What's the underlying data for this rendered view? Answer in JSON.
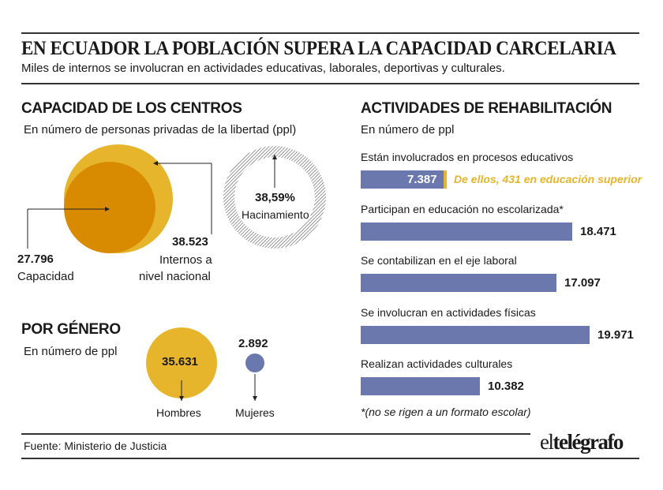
{
  "header": {
    "title": "EN ECUADOR LA POBLACIÓN SUPERA LA CAPACIDAD CARCELARIA",
    "subtitle": "Miles de internos se involucran en actividades educativas, laborales, deportivas y culturales."
  },
  "capacity": {
    "heading": "CAPACIDAD DE LOS CENTROS",
    "unit": "En número de personas privadas de la libertad (ppl)",
    "capacidad_value": "27.796",
    "capacidad_label": "Capacidad",
    "internos_value": "38.523",
    "internos_label_1": "Internos a",
    "internos_label_2": "nivel nacional",
    "hacinamiento_value": "38,59%",
    "hacinamiento_label": "Hacinamiento"
  },
  "gender": {
    "heading": "POR GÉNERO",
    "unit": "En número de ppl",
    "hombres_value": "35.631",
    "hombres_label": "Hombres",
    "mujeres_value": "2.892",
    "mujeres_label": "Mujeres"
  },
  "activities": {
    "heading": "ACTIVIDADES DE REHABILITACIÓN",
    "unit": "En número de ppl",
    "highlight_note": "De ellos, 431 en educación superior",
    "footnote": "*(no se rigen a un formato escolar)"
  },
  "footer": {
    "source_label": "Fuente",
    "source_value": "Ministerio de Justicia",
    "logo_prefix": "el",
    "logo_main": "telégrafo"
  },
  "colors": {
    "bar": "#6b78ad",
    "gold": "#e6b52c",
    "orange": "#d98b00",
    "mujeres": "#6b78ad"
  },
  "chart_data": [
    {
      "type": "bar",
      "orientation": "horizontal",
      "title": "ACTIVIDADES DE REHABILITACIÓN",
      "unit": "En número de ppl",
      "categories": [
        "Están involucrados en procesos educativos",
        "Participan en educación no escolarizada*",
        "Se contabilizan en el eje laboral",
        "Se involucran en actividades físicas",
        "Realizan actividades culturales"
      ],
      "values": [
        7387,
        18471,
        17097,
        19971,
        10382
      ],
      "value_labels": [
        "7.387",
        "18.471",
        "17.097",
        "19.971",
        "10.382"
      ]
    },
    {
      "type": "bubble",
      "title": "CAPACIDAD DE LOS CENTROS",
      "categories": [
        "Capacidad",
        "Internos a nivel nacional"
      ],
      "values": [
        27796,
        38523
      ],
      "overcrowding_pct": 38.59
    },
    {
      "type": "bubble",
      "title": "POR GÉNERO",
      "categories": [
        "Hombres",
        "Mujeres"
      ],
      "values": [
        35631,
        2892
      ]
    }
  ]
}
